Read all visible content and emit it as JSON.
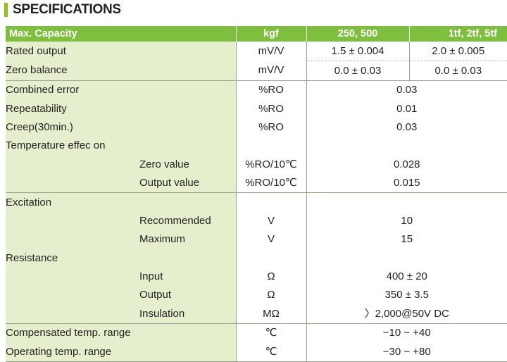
{
  "title": "SPECIFICATIONS",
  "header": {
    "label": "Max. Capacity",
    "unit": "kgf",
    "col_a": "250, 500",
    "col_b": "1tf, 2tf, 5tf"
  },
  "rows": {
    "rated_output": {
      "label": "Rated output",
      "unit": "mV/V",
      "a": "1.5 ± 0.004",
      "b": "2.0 ± 0.005"
    },
    "zero_balance": {
      "label": "Zero balance",
      "unit": "mV/V",
      "a": "0.0 ± 0.03",
      "b": "0.0 ± 0.03"
    },
    "combined_error": {
      "label": "Combined error",
      "unit": "%RO",
      "value": "0.03"
    },
    "repeatability": {
      "label": "Repeatability",
      "unit": "%RO",
      "value": "0.01"
    },
    "creep": {
      "label": "Creep(30min.)",
      "unit": "%RO",
      "value": "0.03"
    },
    "temp_effect": {
      "label": "Temperature effec on"
    },
    "zero_value": {
      "label": "Zero value",
      "unit": "%RO/10℃",
      "value": "0.028"
    },
    "output_value": {
      "label": "Output value",
      "unit": "%RO/10℃",
      "value": "0.015"
    },
    "excitation": {
      "label": "Excitation"
    },
    "recommended": {
      "label": "Recommended",
      "unit": "V",
      "value": "10"
    },
    "maximum": {
      "label": "Maximum",
      "unit": "V",
      "value": "15"
    },
    "resistance": {
      "label": "Resistance"
    },
    "input": {
      "label": "Input",
      "unit": "Ω",
      "value": "400 ± 20"
    },
    "output": {
      "label": "Output",
      "unit": "Ω",
      "value": "350 ± 3.5"
    },
    "insulation": {
      "label": "Insulation",
      "unit": "MΩ",
      "value": "〉2,000@50V DC"
    },
    "comp_temp": {
      "label": "Compensated temp. range",
      "unit": "℃",
      "value": "−10 ~ +40"
    },
    "oper_temp": {
      "label": "Operating temp. range",
      "unit": "℃",
      "value": "−30 ~ +80"
    }
  },
  "colors": {
    "accent": "#7fbf3f",
    "label_bg": "#e6efcd",
    "title_bar": "#8fc31f"
  }
}
